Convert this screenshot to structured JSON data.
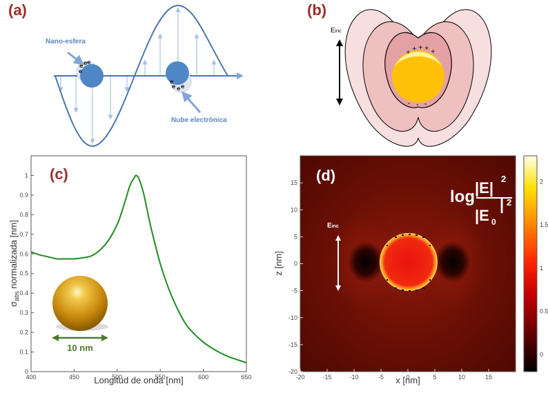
{
  "panel_a": {
    "label": "(a)",
    "nanosphere_label": "Nano-esfera",
    "electron_cloud_label": "Nube electrónica",
    "colors": {
      "wave": "#4a76b0",
      "sphere": "#4f86c6",
      "label": "#5b86c0"
    }
  },
  "panel_b": {
    "label": "(b)",
    "field_label": "E",
    "field_sub": "inc",
    "charge_plus": "+",
    "charge_minus": "-",
    "colors": {
      "outer": "#f7dfdf",
      "middle": "#efc0c0",
      "inner": "#e3a0a5",
      "sphere": "#ffc107"
    }
  },
  "panel_c": {
    "label": "(c)",
    "scale_label": "10 nm",
    "chart_data": {
      "type": "line",
      "title": "",
      "xlabel": "Longitud de onda [nm]",
      "ylabel_sigma": "σ",
      "ylabel_sub": "abs",
      "ylabel_rest": " normalizada [nm]",
      "xlim": [
        400,
        650
      ],
      "ylim": [
        0,
        1.1
      ],
      "xticks": [
        400,
        450,
        500,
        550,
        600,
        650
      ],
      "yticks": [
        0,
        0.1,
        0.2,
        0.3,
        0.4,
        0.5,
        0.6,
        0.7,
        0.8,
        0.9,
        1
      ],
      "x": [
        400,
        410,
        420,
        430,
        440,
        450,
        460,
        470,
        480,
        490,
        500,
        505,
        510,
        515,
        520,
        522,
        525,
        530,
        535,
        540,
        550,
        560,
        570,
        580,
        590,
        600,
        610,
        620,
        630,
        640,
        650
      ],
      "y": [
        0.61,
        0.595,
        0.585,
        0.575,
        0.575,
        0.575,
        0.58,
        0.59,
        0.62,
        0.67,
        0.75,
        0.81,
        0.88,
        0.95,
        0.99,
        1.0,
        0.985,
        0.92,
        0.82,
        0.72,
        0.55,
        0.42,
        0.32,
        0.24,
        0.19,
        0.15,
        0.12,
        0.095,
        0.075,
        0.06,
        0.045
      ],
      "color": "#1f8a1f"
    }
  },
  "panel_d": {
    "label": "(d)",
    "field_label": "E",
    "field_sub": "inc",
    "formula_log": "log",
    "formula_num": "|E|",
    "formula_den": "|E",
    "formula_den_sub": "0",
    "formula_exp": "2",
    "chart_data": {
      "type": "heatmap",
      "xlabel": "x [nm]",
      "ylabel": "z [nm]",
      "xlim": [
        -20,
        20
      ],
      "ylim": [
        -20,
        20
      ],
      "xticks": [
        -20,
        -15,
        -10,
        -5,
        0,
        5,
        10,
        15
      ],
      "yticks": [
        15,
        10,
        5,
        0,
        -5,
        -10,
        -15,
        -20
      ],
      "sphere_radius_nm": 5,
      "colorbar_ticks": [
        "2",
        "1.5",
        "1",
        "0.5",
        "0"
      ],
      "colorbar_range": [
        -0.2,
        2.3
      ]
    }
  }
}
